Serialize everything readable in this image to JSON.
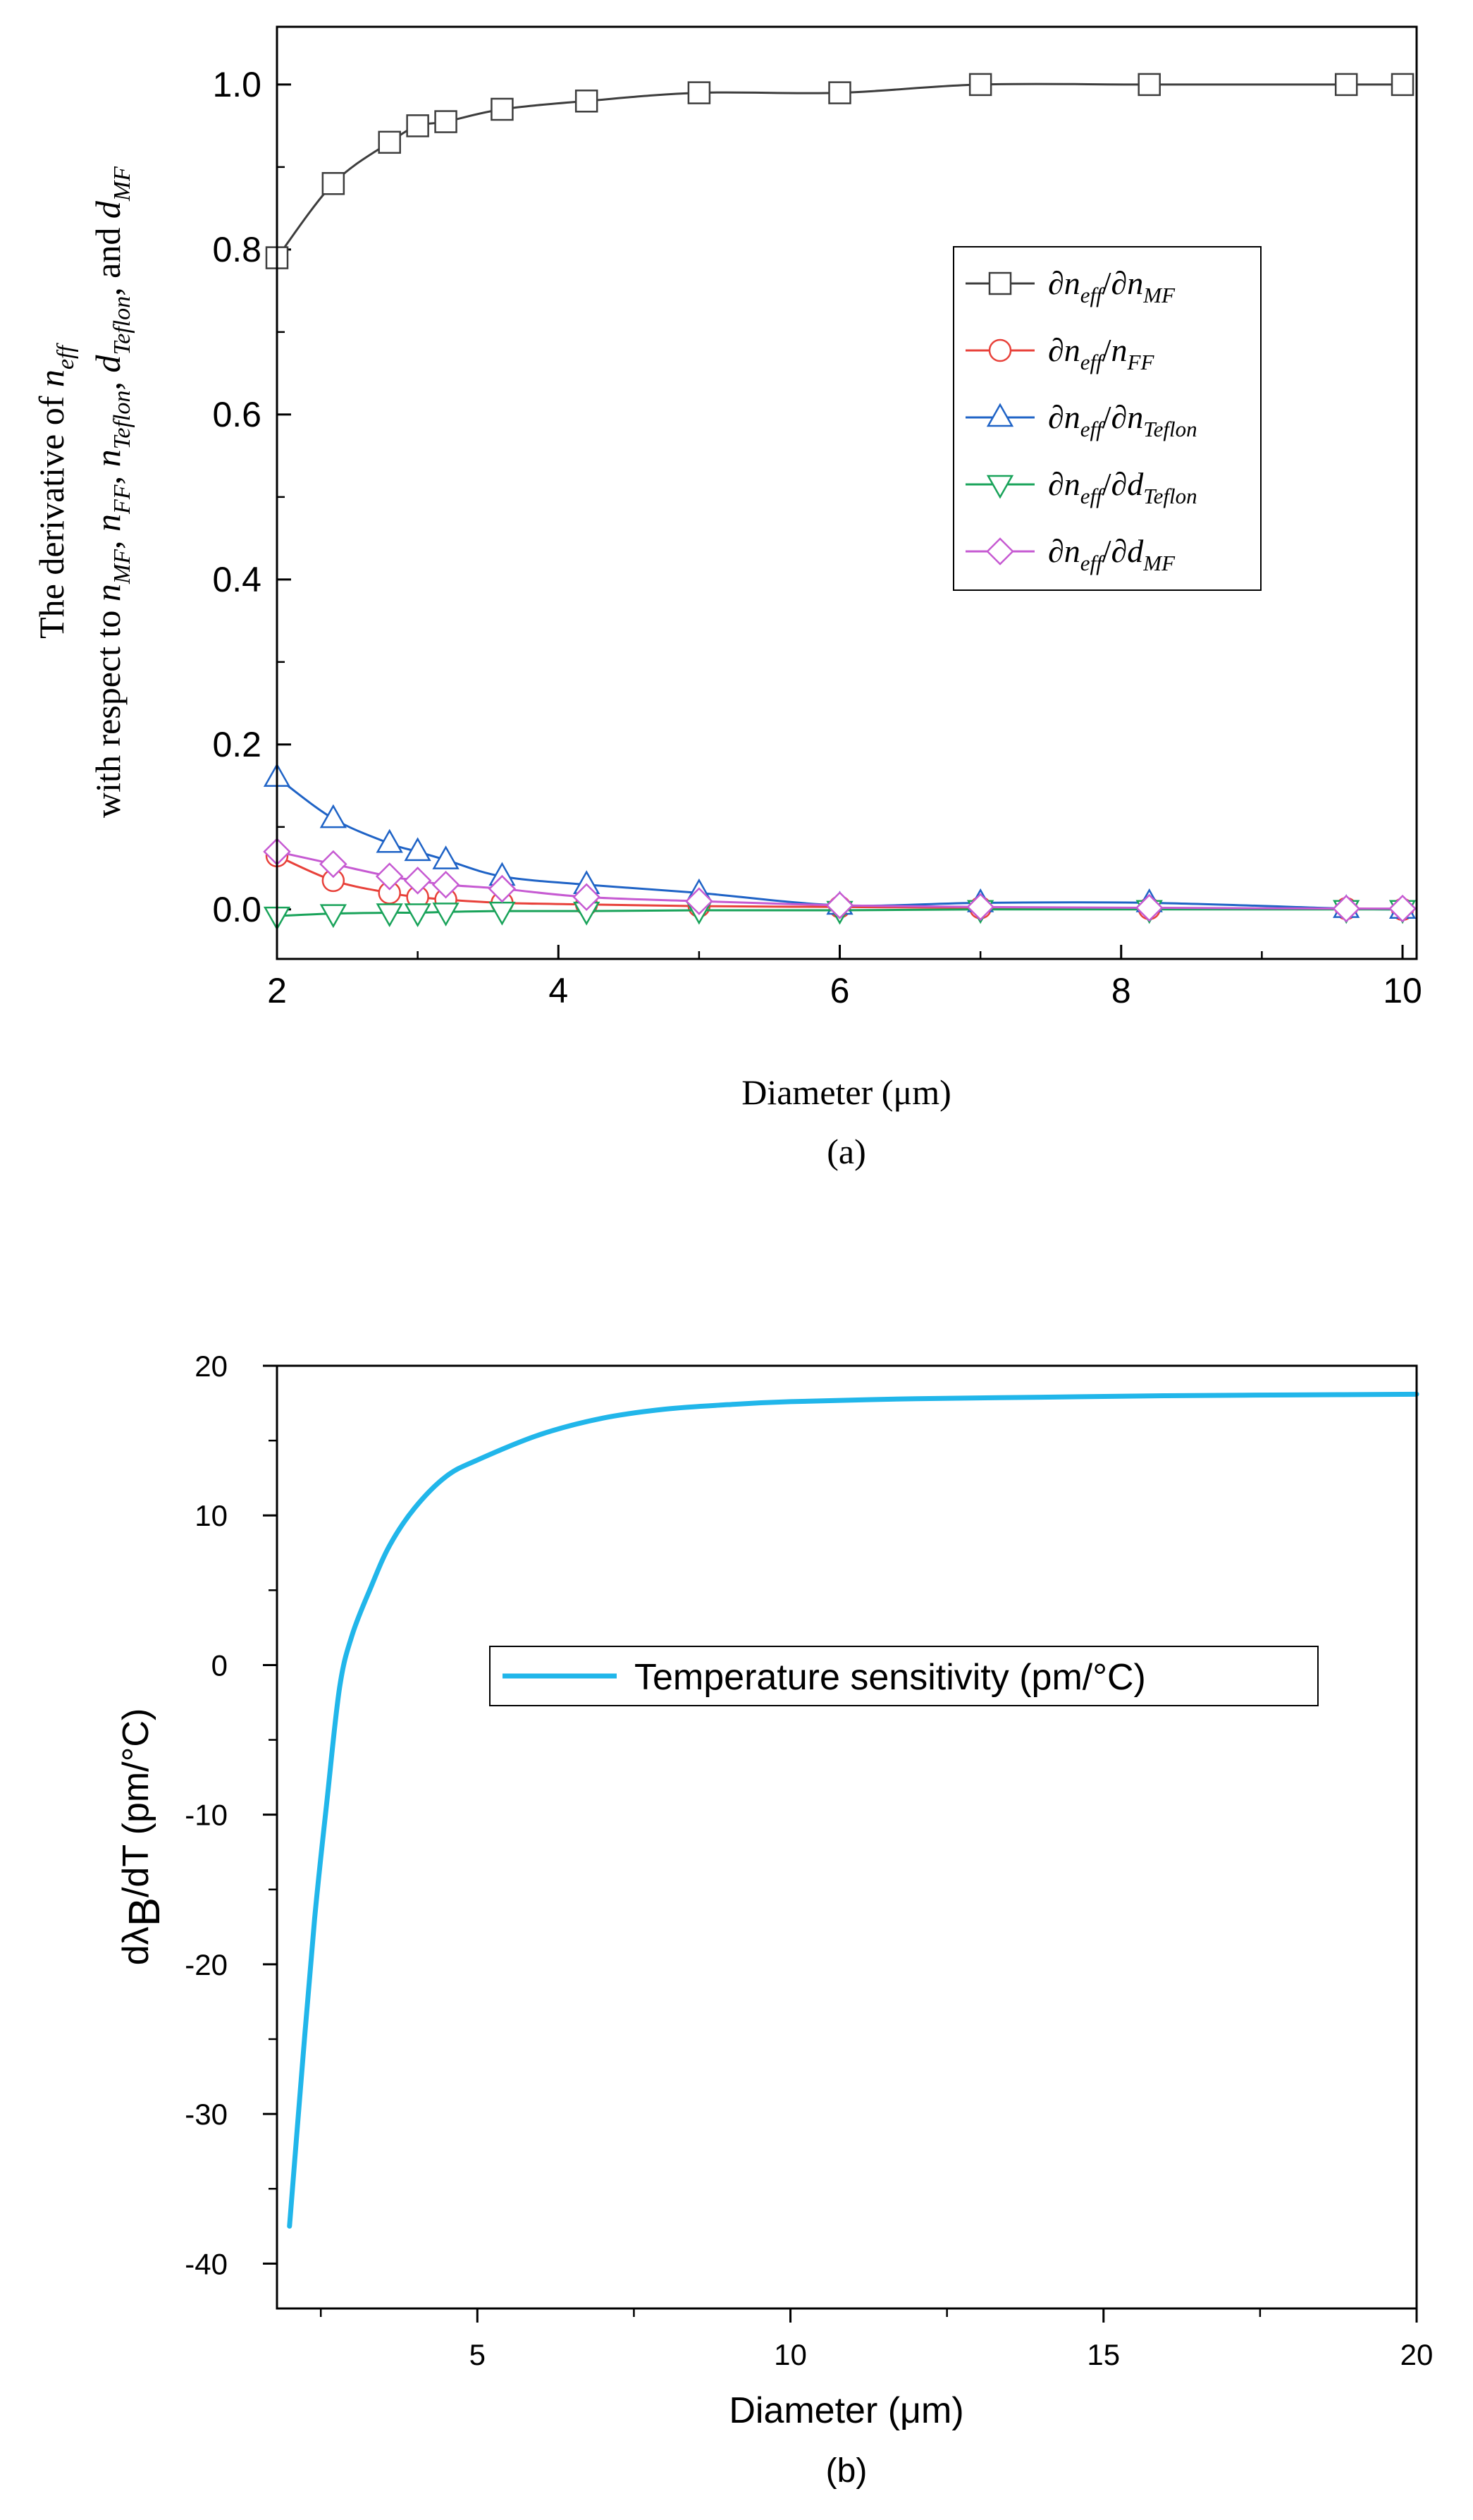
{
  "chart_data": [
    {
      "type": "line",
      "panel_label": "(a)",
      "ylabel_line1_parts": [
        "The derivative of ",
        "n",
        "eff"
      ],
      "ylabel_line2_parts": [
        "with respect to ",
        "n",
        "MF",
        ", ",
        "n",
        "FF",
        ", ",
        "n",
        "Teflon",
        ", ",
        "d",
        "Teflon",
        ", and ",
        "d",
        "MF"
      ],
      "xlabel": "Diameter (μm)",
      "xlim": [
        2,
        10.1
      ],
      "ylim": [
        -0.06,
        1.07
      ],
      "xticks": [
        2,
        4,
        6,
        8,
        10
      ],
      "xtick_labels": [
        "2",
        "4",
        "6",
        "8",
        "10"
      ],
      "yticks": [
        0.0,
        0.2,
        0.4,
        0.6,
        0.8,
        1.0
      ],
      "ytick_labels": [
        "0.0",
        "0.2",
        "0.4",
        "0.6",
        "0.8",
        "1.0"
      ],
      "legend_position": "right-middle",
      "series": [
        {
          "name": "∂neff/∂nMF",
          "label_parts": [
            "∂",
            "n",
            "eff",
            "/∂",
            "n",
            "MF"
          ],
          "color": "#3d3d3d",
          "marker": "square",
          "x": [
            2.0,
            2.4,
            2.8,
            3.0,
            3.2,
            3.6,
            4.2,
            5.0,
            6.0,
            7.0,
            8.2,
            9.6,
            10.0
          ],
          "y": [
            0.79,
            0.88,
            0.93,
            0.95,
            0.955,
            0.97,
            0.98,
            0.99,
            0.99,
            1.0,
            1.0,
            1.0,
            1.0
          ]
        },
        {
          "name": "∂neff/nFF",
          "label_parts": [
            "∂",
            "n",
            "eff",
            "/",
            "n",
            "FF"
          ],
          "color": "#e8413a",
          "marker": "circle",
          "x": [
            2.0,
            2.4,
            2.8,
            3.0,
            3.2,
            3.6,
            4.2,
            5.0,
            6.0,
            7.0,
            8.2,
            9.6,
            10.0
          ],
          "y": [
            0.065,
            0.035,
            0.02,
            0.015,
            0.012,
            0.008,
            0.006,
            0.004,
            0.003,
            0.002,
            0.001,
            0.001,
            0.0
          ]
        },
        {
          "name": "∂neff/∂nTeflon",
          "label_parts": [
            "∂",
            "n",
            "eff",
            "/∂",
            "n",
            "Teflon"
          ],
          "color": "#1f63c6",
          "marker": "triangle-up",
          "x": [
            2.0,
            2.4,
            2.8,
            3.0,
            3.2,
            3.6,
            4.2,
            5.0,
            6.0,
            7.0,
            8.2,
            9.6,
            10.0
          ],
          "y": [
            0.16,
            0.11,
            0.08,
            0.07,
            0.06,
            0.04,
            0.03,
            0.02,
            0.005,
            0.008,
            0.008,
            0.001,
            0.0
          ]
        },
        {
          "name": "∂neff/∂dTeflon",
          "label_parts": [
            "∂",
            "n",
            "eff",
            "/∂",
            "d",
            "Teflon"
          ],
          "color": "#19a35a",
          "marker": "triangle-down",
          "x": [
            2.0,
            2.4,
            2.8,
            3.0,
            3.2,
            3.6,
            4.2,
            5.0,
            6.0,
            7.0,
            8.2,
            9.6,
            10.0
          ],
          "y": [
            -0.008,
            -0.005,
            -0.004,
            -0.004,
            -0.003,
            -0.002,
            -0.002,
            -0.001,
            -0.001,
            0.0,
            0.0,
            0.0,
            0.0
          ]
        },
        {
          "name": "∂neff/∂dMF",
          "label_parts": [
            "∂",
            "n",
            "eff",
            "/∂",
            "d",
            "MF"
          ],
          "color": "#c65ad2",
          "marker": "diamond",
          "x": [
            2.0,
            2.4,
            2.8,
            3.0,
            3.2,
            3.6,
            4.2,
            5.0,
            6.0,
            7.0,
            8.2,
            9.6,
            10.0
          ],
          "y": [
            0.07,
            0.055,
            0.04,
            0.035,
            0.03,
            0.025,
            0.015,
            0.01,
            0.005,
            0.003,
            0.002,
            0.001,
            0.001
          ]
        }
      ]
    },
    {
      "type": "line",
      "panel_label": "(b)",
      "ylabel_parts": [
        "dλ",
        "B",
        "/dT (pm/°C)"
      ],
      "xlabel": "Diameter (μm)",
      "xlim": [
        1.8,
        20
      ],
      "ylim": [
        -43,
        20
      ],
      "xticks": [
        5,
        10,
        15,
        20
      ],
      "xtick_labels": [
        "5",
        "10",
        "15",
        "20"
      ],
      "xminor": [
        2.5,
        7.5,
        12.5,
        17.5
      ],
      "yticks": [
        -40,
        -30,
        -20,
        -10,
        0,
        10,
        20
      ],
      "ytick_labels": [
        "-40",
        "-30",
        "-20",
        "-10",
        "0",
        "10",
        "20"
      ],
      "legend_position": "center",
      "series": [
        {
          "name": "Temperature sensitivity (pm/°C)",
          "color": "#21b6ea",
          "marker": "none",
          "x": [
            2.0,
            2.2,
            2.4,
            2.6,
            2.8,
            3.0,
            3.3,
            3.6,
            4.0,
            4.5,
            5.0,
            6.0,
            7.0,
            8.0,
            9.0,
            10.0,
            12.0,
            14.0,
            16.0,
            18.0,
            20.0
          ],
          "y": [
            -37.5,
            -27.0,
            -17.0,
            -9.0,
            -1.5,
            2.0,
            5.2,
            8.0,
            10.5,
            12.6,
            13.7,
            15.4,
            16.5,
            17.1,
            17.4,
            17.6,
            17.8,
            17.9,
            18.0,
            18.05,
            18.1
          ]
        }
      ]
    }
  ]
}
